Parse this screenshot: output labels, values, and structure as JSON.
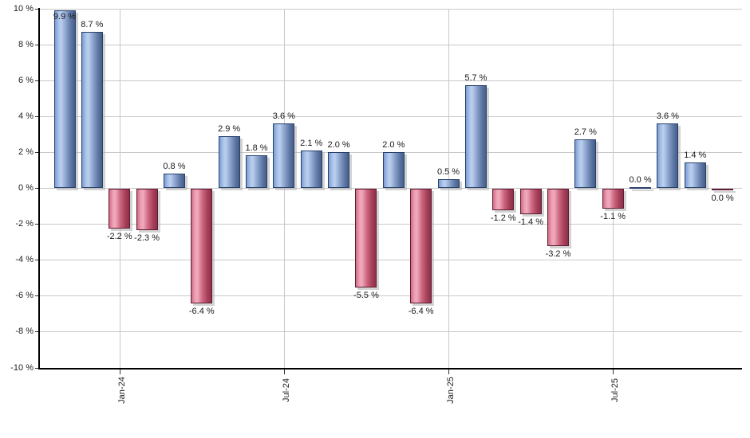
{
  "chart_data": {
    "type": "bar",
    "title": "",
    "xlabel": "",
    "ylabel": "",
    "ylim": [
      -10,
      10
    ],
    "grid": true,
    "legend": "none",
    "y_ticks": [
      {
        "value": 10,
        "label": "10 %"
      },
      {
        "value": 8,
        "label": "8 %"
      },
      {
        "value": 6,
        "label": "6 %"
      },
      {
        "value": 4,
        "label": "4 %"
      },
      {
        "value": 2,
        "label": "2 %"
      },
      {
        "value": 0,
        "label": "0 %"
      },
      {
        "value": -2,
        "label": "-2 %"
      },
      {
        "value": -4,
        "label": "-4 %"
      },
      {
        "value": -6,
        "label": "-6 %"
      },
      {
        "value": -8,
        "label": "-8 %"
      },
      {
        "value": -10,
        "label": "-10 %"
      }
    ],
    "x_ticks": [
      {
        "index": 2,
        "label": "Jan-24"
      },
      {
        "index": 8,
        "label": "Jul-24"
      },
      {
        "index": 14,
        "label": "Jan-25"
      },
      {
        "index": 20,
        "label": "Jul-25"
      }
    ],
    "points": [
      {
        "month": "Nov-23",
        "value": 9.9,
        "label": "9.9 %",
        "color": "blue"
      },
      {
        "month": "Dec-23",
        "value": 8.7,
        "label": "8.7 %",
        "color": "blue"
      },
      {
        "month": "Jan-24",
        "value": -2.2,
        "label": "-2.2 %",
        "color": "red"
      },
      {
        "month": "Feb-24",
        "value": -2.3,
        "label": "-2.3 %",
        "color": "red"
      },
      {
        "month": "Mar-24",
        "value": 0.8,
        "label": "0.8 %",
        "color": "blue"
      },
      {
        "month": "Apr-24",
        "value": -6.4,
        "label": "-6.4 %",
        "color": "red"
      },
      {
        "month": "May-24",
        "value": 2.9,
        "label": "2.9 %",
        "color": "blue"
      },
      {
        "month": "Jun-24",
        "value": 1.8,
        "label": "1.8 %",
        "color": "blue"
      },
      {
        "month": "Jul-24",
        "value": 3.6,
        "label": "3.6 %",
        "color": "blue"
      },
      {
        "month": "Aug-24",
        "value": 2.1,
        "label": "2.1 %",
        "color": "blue"
      },
      {
        "month": "Sep-24",
        "value": 2.0,
        "label": "2.0 %",
        "color": "blue"
      },
      {
        "month": "Oct-24",
        "value": -5.5,
        "label": "-5.5 %",
        "color": "red"
      },
      {
        "month": "Nov-24",
        "value": 2.0,
        "label": "2.0 %",
        "color": "blue"
      },
      {
        "month": "Dec-24",
        "value": -6.4,
        "label": "-6.4 %",
        "color": "red"
      },
      {
        "month": "Jan-25",
        "value": 0.5,
        "label": "0.5 %",
        "color": "blue"
      },
      {
        "month": "Feb-25",
        "value": 5.7,
        "label": "5.7 %",
        "color": "blue"
      },
      {
        "month": "Mar-25",
        "value": -1.2,
        "label": "-1.2 %",
        "color": "red"
      },
      {
        "month": "Apr-25",
        "value": -1.4,
        "label": "-1.4 %",
        "color": "red"
      },
      {
        "month": "May-25",
        "value": -3.2,
        "label": "-3.2 %",
        "color": "red"
      },
      {
        "month": "Jun-25",
        "value": 2.7,
        "label": "2.7 %",
        "color": "blue"
      },
      {
        "month": "Jul-25",
        "value": -1.1,
        "label": "-1.1 %",
        "color": "red"
      },
      {
        "month": "Aug-25",
        "value": 0.0,
        "label": "0.0 %",
        "color": "blue"
      },
      {
        "month": "Sep-25",
        "value": 3.6,
        "label": "3.6 %",
        "color": "blue"
      },
      {
        "month": "Oct-25",
        "value": 1.4,
        "label": "1.4 %",
        "color": "blue"
      },
      {
        "month": "Nov-25",
        "value": 0.0,
        "label": "0.0 %",
        "color": "red"
      }
    ],
    "colors": {
      "positive_bar": "#7b9cd4",
      "positive_border": "#26406b",
      "negative_bar": "#cc6680",
      "negative_border": "#5f1d33",
      "gridline": "#c9c9c9",
      "axis": "#000000",
      "text": "#222222"
    }
  }
}
